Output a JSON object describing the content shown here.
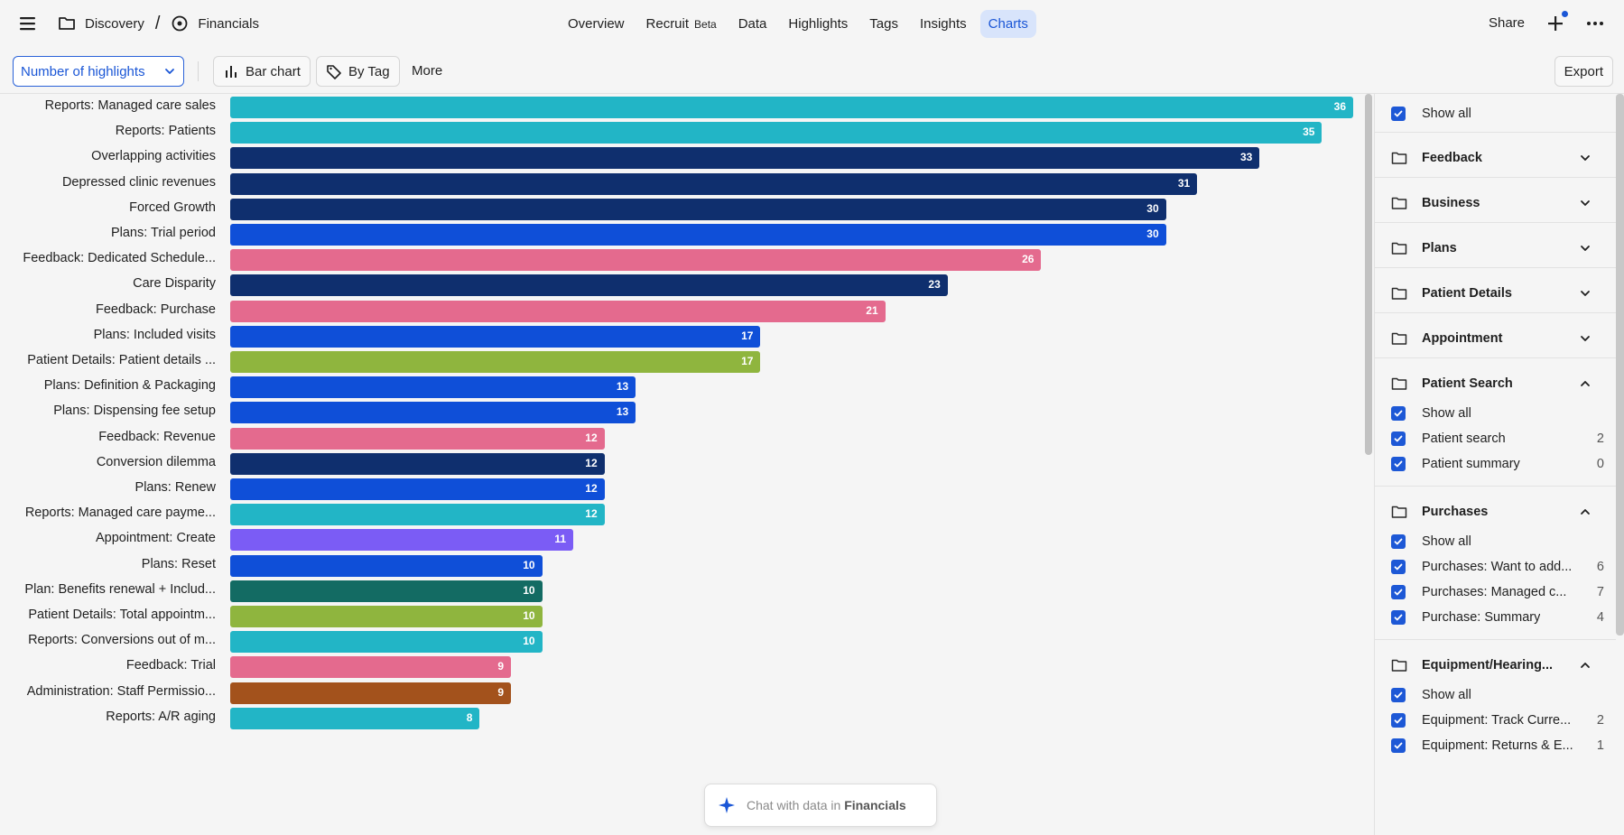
{
  "breadcrumb": {
    "project": "Discovery",
    "separator": "/",
    "page": "Financials"
  },
  "nav": {
    "tabs": [
      "Overview",
      "Recruit",
      "Data",
      "Highlights",
      "Tags",
      "Insights",
      "Charts"
    ],
    "beta_label": "Beta",
    "active": "Charts"
  },
  "topright": {
    "share": "Share"
  },
  "toolbar": {
    "metric_select": "Number of highlights",
    "chart_type": "Bar chart",
    "group_by": "By Tag",
    "more": "More",
    "export": "Export"
  },
  "chat": {
    "prefix": "Chat with data in",
    "project": "Financials"
  },
  "chart_data": {
    "type": "bar",
    "orientation": "horizontal",
    "title": "",
    "xlabel": "",
    "ylabel": "",
    "xlim": [
      0,
      36
    ],
    "categories": [
      "Reports: Managed care sales",
      "Reports: Patients",
      "Overlapping activities",
      "Depressed clinic revenues",
      "Forced Growth",
      "Plans: Trial period",
      "Feedback: Dedicated Schedule...",
      "Care Disparity",
      "Feedback: Purchase",
      "Plans: Included visits",
      "Patient Details: Patient details ...",
      "Plans: Definition & Packaging",
      "Plans: Dispensing fee setup",
      "Feedback: Revenue",
      "Conversion dilemma",
      "Plans: Renew",
      "Reports: Managed care payme...",
      "Appointment: Create",
      "Plans: Reset",
      "Plan: Benefits renewal + Includ...",
      "Patient Details: Total appointm...",
      "Reports: Conversions out of m...",
      "Feedback: Trial",
      "Administration: Staff Permissio...",
      "Reports: A/R aging"
    ],
    "values": [
      36,
      35,
      33,
      31,
      30,
      30,
      26,
      23,
      21,
      17,
      17,
      13,
      13,
      12,
      12,
      12,
      12,
      11,
      10,
      10,
      10,
      10,
      9,
      9,
      8
    ],
    "colors": [
      "#22b5c6",
      "#22b5c6",
      "#0f2f6e",
      "#0f2f6e",
      "#0f2f6e",
      "#0f4fd8",
      "#e46a8e",
      "#0f2f6e",
      "#e46a8e",
      "#0f4fd8",
      "#8fb53e",
      "#0f4fd8",
      "#0f4fd8",
      "#e46a8e",
      "#0f2f6e",
      "#0f4fd8",
      "#22b5c6",
      "#7b5cf5",
      "#0f4fd8",
      "#136b63",
      "#8fb53e",
      "#22b5c6",
      "#e46a8e",
      "#a3521c",
      "#22b5c6"
    ]
  },
  "panel": {
    "show_all": "Show all",
    "groups": [
      {
        "name": "Feedback",
        "expanded": false,
        "items": []
      },
      {
        "name": "Business",
        "expanded": false,
        "items": []
      },
      {
        "name": "Plans",
        "expanded": false,
        "items": []
      },
      {
        "name": "Patient Details",
        "expanded": false,
        "items": []
      },
      {
        "name": "Appointment",
        "expanded": false,
        "items": []
      },
      {
        "name": "Patient Search",
        "expanded": true,
        "items": [
          {
            "label": "Patient search",
            "count": "2"
          },
          {
            "label": "Patient summary",
            "count": "0"
          }
        ]
      },
      {
        "name": "Purchases",
        "expanded": true,
        "items": [
          {
            "label": "Purchases: Want to add...",
            "count": "6"
          },
          {
            "label": "Purchases: Managed c...",
            "count": "7"
          },
          {
            "label": "Purchase: Summary",
            "count": "4"
          }
        ]
      },
      {
        "name": "Equipment/Hearing...",
        "expanded": true,
        "items": [
          {
            "label": "Equipment: Track Curre...",
            "count": "2"
          },
          {
            "label": "Equipment: Returns & E...",
            "count": "1"
          }
        ]
      }
    ]
  }
}
